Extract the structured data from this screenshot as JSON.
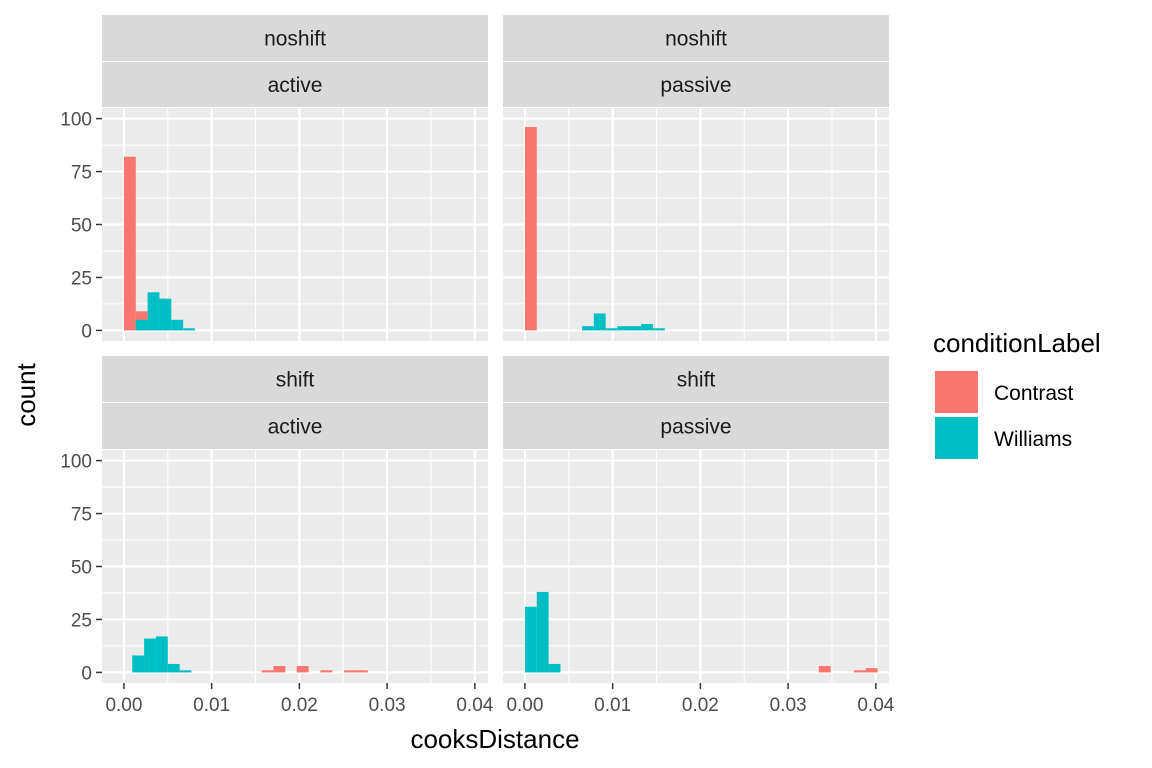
{
  "chart_data": {
    "type": "bar",
    "subtype": "faceted-histogram",
    "xlabel": "cooksDistance",
    "ylabel": "count",
    "xlim": [
      -0.0025,
      0.0415
    ],
    "ylim": [
      -5,
      105
    ],
    "x_ticks": [
      0.0,
      0.01,
      0.02,
      0.03,
      0.04
    ],
    "x_tick_labels": [
      "0.00",
      "0.01",
      "0.02",
      "0.03",
      "0.04"
    ],
    "y_ticks": [
      0,
      25,
      50,
      75,
      100
    ],
    "y_tick_labels": [
      "0",
      "25",
      "50",
      "75",
      "100"
    ],
    "bin_width": 0.00135,
    "grid": true,
    "legend": {
      "title": "conditionLabel",
      "position": "right",
      "entries": [
        {
          "name": "Contrast",
          "color": "#F8766D"
        },
        {
          "name": "Williams",
          "color": "#00BFC4"
        }
      ]
    },
    "colors": {
      "panel_bg": "#EBEBEB",
      "strip_bg": "#D9D9D9",
      "grid": "#FFFFFF",
      "Contrast": "#F8766D",
      "Williams": "#00BFC4"
    },
    "facets": [
      {
        "row": "noshift",
        "col": "active",
        "series": [
          {
            "name": "Contrast",
            "bins": [
              [
                0.0,
                82
              ],
              [
                0.00135,
                9
              ]
            ]
          },
          {
            "name": "Williams",
            "bins": [
              [
                0.00135,
                5
              ],
              [
                0.0027,
                18
              ],
              [
                0.00405,
                15
              ],
              [
                0.0054,
                5
              ],
              [
                0.00675,
                1
              ]
            ]
          }
        ]
      },
      {
        "row": "noshift",
        "col": "passive",
        "series": [
          {
            "name": "Contrast",
            "bins": [
              [
                0.0,
                96
              ]
            ]
          },
          {
            "name": "Williams",
            "bins": [
              [
                0.0065,
                2
              ],
              [
                0.00785,
                8
              ],
              [
                0.0092,
                1
              ],
              [
                0.01055,
                2
              ],
              [
                0.0119,
                2
              ],
              [
                0.01325,
                3
              ],
              [
                0.0146,
                1
              ]
            ]
          }
        ]
      },
      {
        "row": "shift",
        "col": "active",
        "series": [
          {
            "name": "Contrast",
            "bins": [
              [
                0.0157,
                1
              ],
              [
                0.01705,
                3
              ],
              [
                0.0197,
                3
              ],
              [
                0.0224,
                1
              ],
              [
                0.0251,
                1
              ],
              [
                0.02645,
                1
              ]
            ]
          },
          {
            "name": "Williams",
            "bins": [
              [
                0.00095,
                8
              ],
              [
                0.0023,
                16
              ],
              [
                0.00365,
                17
              ],
              [
                0.005,
                4
              ],
              [
                0.00635,
                1
              ]
            ]
          }
        ]
      },
      {
        "row": "shift",
        "col": "passive",
        "series": [
          {
            "name": "Contrast",
            "bins": [
              [
                0.0335,
                3
              ],
              [
                0.0375,
                1
              ],
              [
                0.03885,
                2
              ]
            ]
          },
          {
            "name": "Williams",
            "bins": [
              [
                0.0,
                31
              ],
              [
                0.00135,
                38
              ],
              [
                0.0027,
                4
              ]
            ]
          }
        ]
      }
    ]
  }
}
